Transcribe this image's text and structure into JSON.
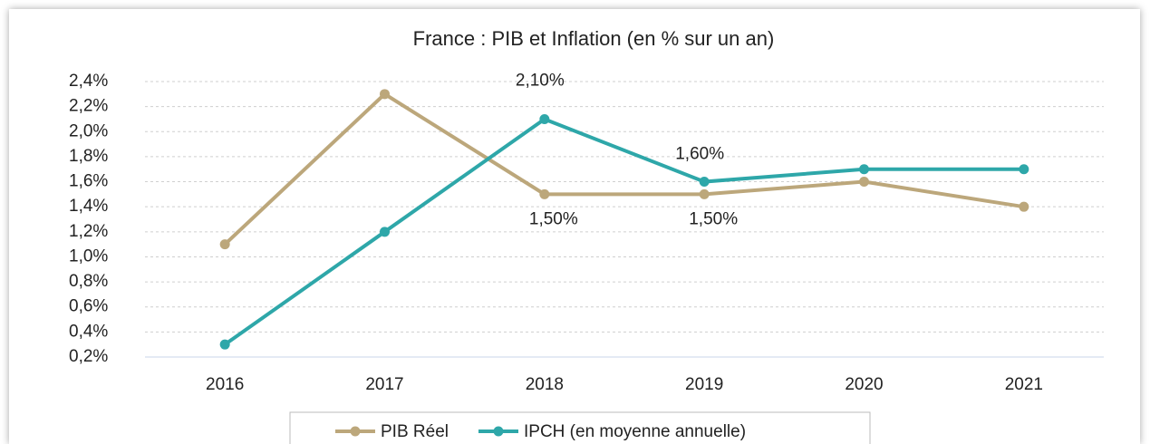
{
  "chart_data": {
    "type": "line",
    "title": "France : PIB et Inflation (en % sur un an)",
    "categories": [
      "2016",
      "2017",
      "2018",
      "2019",
      "2020",
      "2021"
    ],
    "series": [
      {
        "name": "PIB Réel",
        "color": "#bca77b",
        "values": [
          1.1,
          2.3,
          1.5,
          1.5,
          1.6,
          1.4
        ],
        "value_labels": [
          null,
          null,
          "1,50%",
          "1,50%",
          null,
          null
        ]
      },
      {
        "name": "IPCH (en moyenne annuelle)",
        "color": "#2ea7a9",
        "values": [
          0.3,
          1.2,
          2.1,
          1.6,
          1.7,
          1.7
        ],
        "value_labels": [
          null,
          null,
          "2,10%",
          "1,60%",
          null,
          null
        ]
      }
    ],
    "ylim": [
      0.2,
      2.4
    ],
    "yticks": [
      {
        "value": 0.2,
        "label": "0,2%"
      },
      {
        "value": 0.4,
        "label": "0,4%"
      },
      {
        "value": 0.6,
        "label": "0,6%"
      },
      {
        "value": 0.8,
        "label": "0,8%"
      },
      {
        "value": 1.0,
        "label": "1,0%"
      },
      {
        "value": 1.2,
        "label": "1,2%"
      },
      {
        "value": 1.4,
        "label": "1,4%"
      },
      {
        "value": 1.6,
        "label": "1,6%"
      },
      {
        "value": 1.8,
        "label": "1,8%"
      },
      {
        "value": 2.0,
        "label": "2,0%"
      },
      {
        "value": 2.2,
        "label": "2,2%"
      },
      {
        "value": 2.4,
        "label": "2,4%"
      }
    ],
    "grid": true,
    "legend": "bottom"
  }
}
